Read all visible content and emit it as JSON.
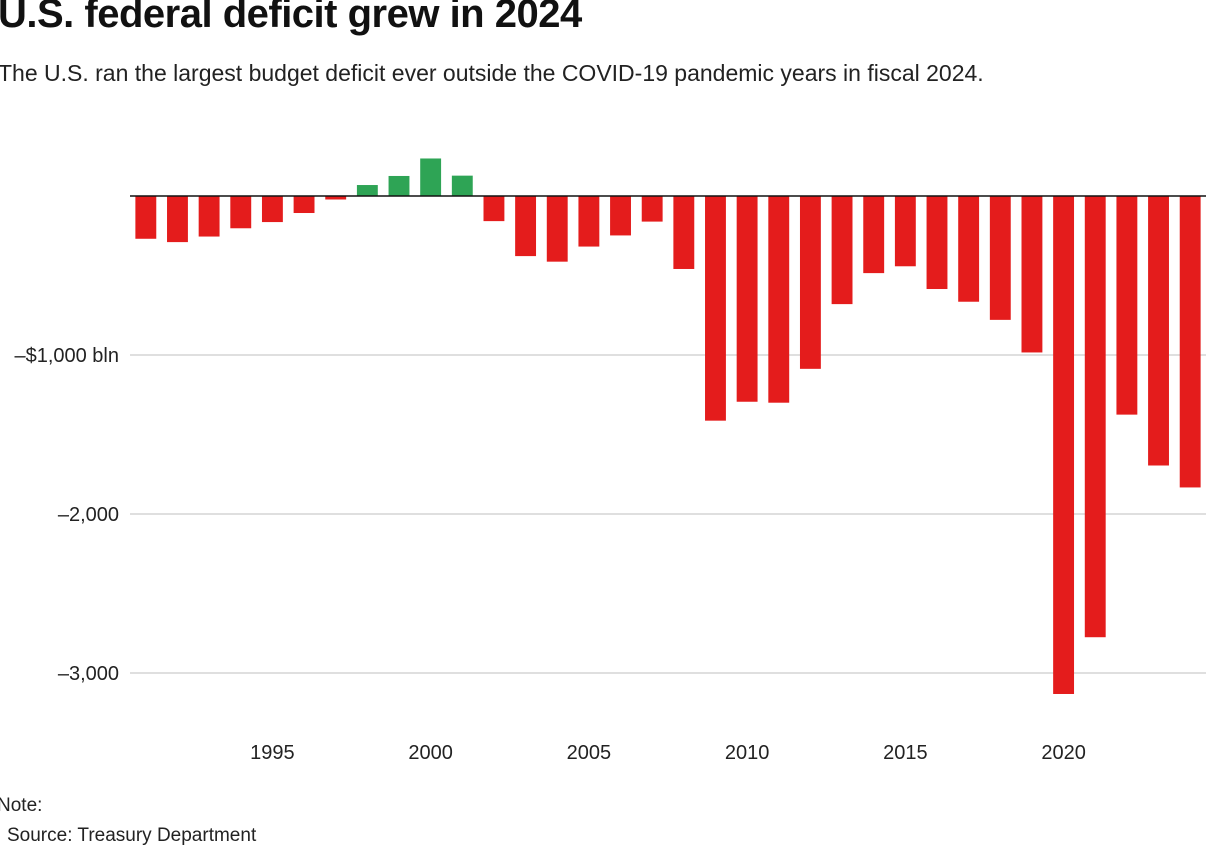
{
  "header": {
    "title": "U.S. federal deficit grew in 2024",
    "subtitle": "The U.S. ran the largest budget deficit ever outside the COVID-19 pandemic years in fiscal 2024."
  },
  "footer": {
    "note": "Note:",
    "source": "Source: Treasury Department"
  },
  "colors": {
    "deficit": "#e41c1c",
    "surplus": "#2ea455",
    "gridline": "#cccccc",
    "baseline": "#111111"
  },
  "chart_data": {
    "type": "bar",
    "title": "U.S. federal deficit grew in 2024",
    "subtitle": "The U.S. ran the largest budget deficit ever outside the COVID-19 pandemic years in fiscal 2024.",
    "xlabel": "",
    "ylabel": "",
    "unit": "bln",
    "grid": true,
    "legend": "none",
    "ylim": [
      -3200,
      300
    ],
    "yticks": [
      {
        "value": -1000,
        "label": "–$1,000 bln"
      },
      {
        "value": -2000,
        "label": "–2,000"
      },
      {
        "value": -3000,
        "label": "–3,000"
      }
    ],
    "xticks": [
      1995,
      2000,
      2005,
      2010,
      2015,
      2020
    ],
    "categories": [
      1991,
      1992,
      1993,
      1994,
      1995,
      1996,
      1997,
      1998,
      1999,
      2000,
      2001,
      2002,
      2003,
      2004,
      2005,
      2006,
      2007,
      2008,
      2009,
      2010,
      2011,
      2012,
      2013,
      2014,
      2015,
      2016,
      2017,
      2018,
      2019,
      2020,
      2021,
      2022,
      2023,
      2024
    ],
    "values": [
      -269,
      -290,
      -255,
      -203,
      -164,
      -107,
      -22,
      69,
      126,
      236,
      128,
      -158,
      -378,
      -413,
      -318,
      -248,
      -161,
      -459,
      -1413,
      -1294,
      -1300,
      -1087,
      -680,
      -485,
      -442,
      -585,
      -665,
      -779,
      -984,
      -3132,
      -2775,
      -1375,
      -1695,
      -1833
    ]
  }
}
